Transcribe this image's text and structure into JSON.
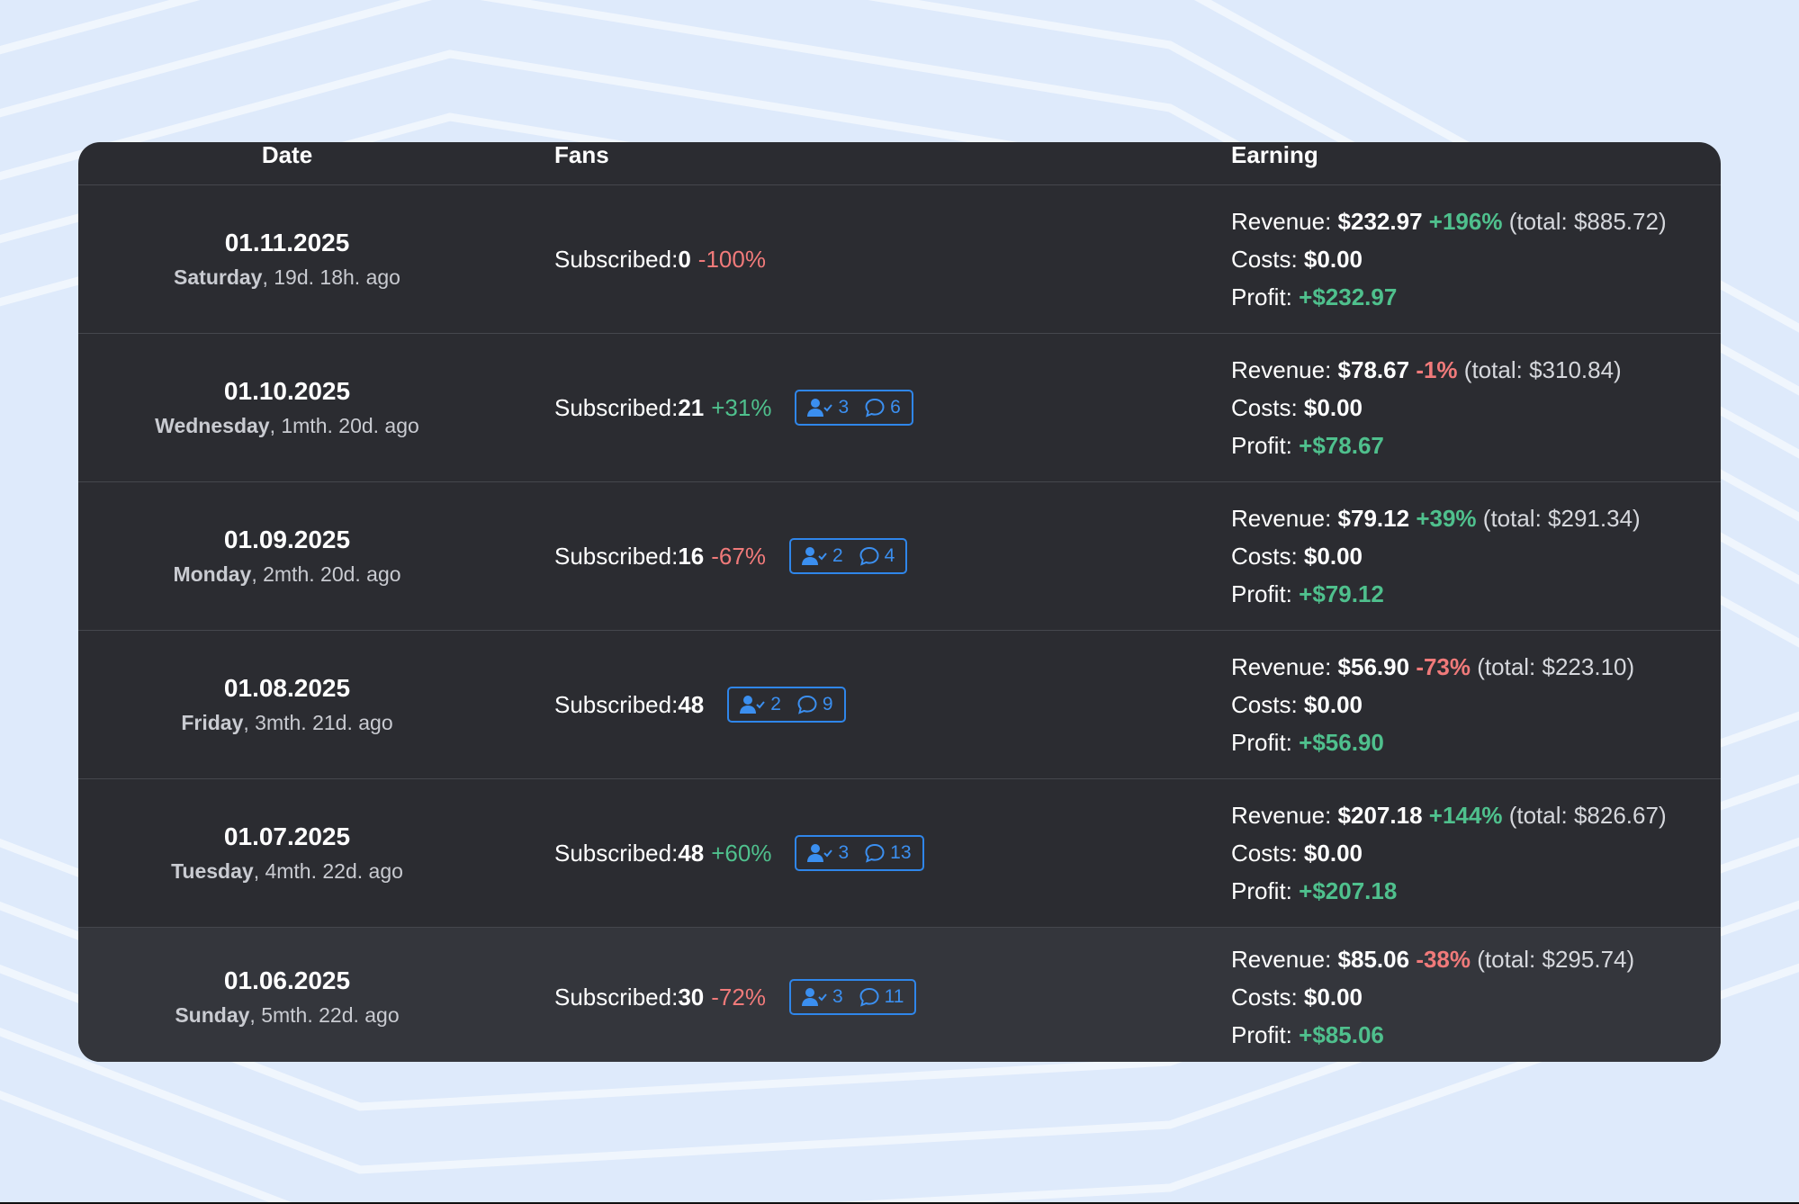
{
  "colors": {
    "background": "#deeafb",
    "panel": "#2b2c31",
    "positive": "#4fc08d",
    "negative": "#f07a7a",
    "badge": "#2f86ea"
  },
  "columns": {
    "date": "Date",
    "fans": "Fans",
    "earning": "Earning"
  },
  "labels": {
    "subscribed": "Subscribed:",
    "revenue": "Revenue:",
    "costs": "Costs:",
    "profit": "Profit:",
    "total_open": "(total:",
    "total_close": ")"
  },
  "rows": [
    {
      "date": "01.11.2025",
      "weekday": "Saturday",
      "ago": ", 19d. 18h. ago",
      "subscribed": "0",
      "fans_change": "-100%",
      "fans_trend": "neg",
      "badge": null,
      "revenue": "$232.97",
      "revenue_change": "+196%",
      "revenue_trend": "pos",
      "total": "$885.72",
      "costs": "$0.00",
      "profit": "+$232.97"
    },
    {
      "date": "01.10.2025",
      "weekday": "Wednesday",
      "ago": ", 1mth. 20d. ago",
      "subscribed": "21",
      "fans_change": "+31%",
      "fans_trend": "pos",
      "badge": {
        "users": "3",
        "messages": "6"
      },
      "revenue": "$78.67",
      "revenue_change": "-1%",
      "revenue_trend": "neg",
      "total": "$310.84",
      "costs": "$0.00",
      "profit": "+$78.67"
    },
    {
      "date": "01.09.2025",
      "weekday": "Monday",
      "ago": ", 2mth. 20d. ago",
      "subscribed": "16",
      "fans_change": "-67%",
      "fans_trend": "neg",
      "badge": {
        "users": "2",
        "messages": "4"
      },
      "revenue": "$79.12",
      "revenue_change": "+39%",
      "revenue_trend": "pos",
      "total": "$291.34",
      "costs": "$0.00",
      "profit": "+$79.12"
    },
    {
      "date": "01.08.2025",
      "weekday": "Friday",
      "ago": ", 3mth. 21d. ago",
      "subscribed": "48",
      "fans_change": "",
      "fans_trend": "",
      "badge": {
        "users": "2",
        "messages": "9"
      },
      "revenue": "$56.90",
      "revenue_change": "-73%",
      "revenue_trend": "neg",
      "total": "$223.10",
      "costs": "$0.00",
      "profit": "+$56.90"
    },
    {
      "date": "01.07.2025",
      "weekday": "Tuesday",
      "ago": ", 4mth. 22d. ago",
      "subscribed": "48",
      "fans_change": "+60%",
      "fans_trend": "pos",
      "badge": {
        "users": "3",
        "messages": "13"
      },
      "revenue": "$207.18",
      "revenue_change": "+144%",
      "revenue_trend": "pos",
      "total": "$826.67",
      "costs": "$0.00",
      "profit": "+$207.18"
    },
    {
      "date": "01.06.2025",
      "weekday": "Sunday",
      "ago": ", 5mth. 22d. ago",
      "subscribed": "30",
      "fans_change": "-72%",
      "fans_trend": "neg",
      "badge": {
        "users": "3",
        "messages": "11"
      },
      "revenue": "$85.06",
      "revenue_change": "-38%",
      "revenue_trend": "neg",
      "total": "$295.74",
      "costs": "$0.00",
      "profit": "+$85.06"
    }
  ]
}
